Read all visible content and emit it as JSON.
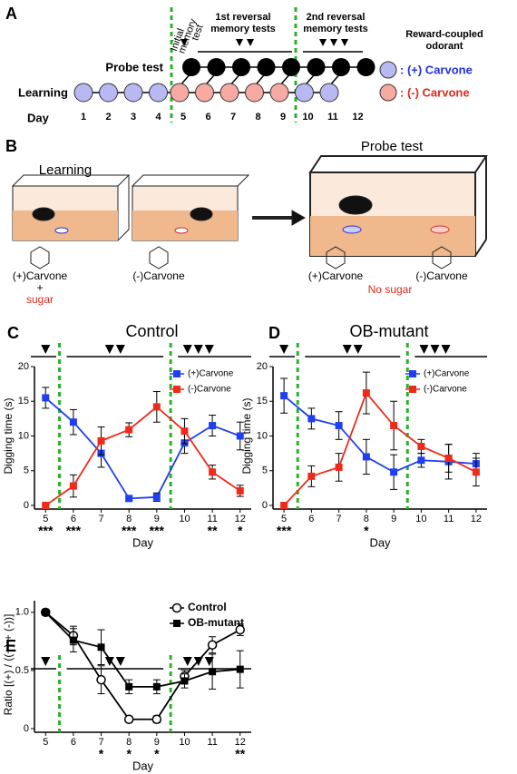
{
  "panel_a": {
    "label": "A",
    "initial_test": [
      "Initial",
      "memory",
      "test"
    ],
    "reversal1": [
      "1st reversal",
      "memory tests"
    ],
    "reversal2": [
      "2nd reversal",
      "memory tests"
    ],
    "legend_title": [
      "Reward-coupled",
      "odorant"
    ],
    "legend": [
      ": (+) Carvone",
      ": (-) Carvone"
    ],
    "probe_label": "Probe test",
    "learning_label": "Learning",
    "day_label": "Day",
    "days": [
      1,
      2,
      3,
      4,
      5,
      6,
      7,
      8,
      9,
      10,
      11,
      12
    ]
  },
  "panel_b": {
    "label": "B",
    "learning": "Learning",
    "probe": "Probe test",
    "odor_plus": "(+)Carvone",
    "plus_sign": "+",
    "reward": "sugar",
    "odor_minus": "(-)Carvone",
    "probe_left": "(+)Carvone",
    "probe_right": "(-)Carvone",
    "probe_note": "No sugar"
  },
  "chart_data": [
    {
      "type": "line",
      "panel": "C",
      "title": "Control",
      "xlabel": "Day",
      "ylabel": "Digging time (s)",
      "x": [
        5,
        6,
        7,
        8,
        9,
        10,
        11,
        12
      ],
      "xlim": [
        4.6,
        12.4
      ],
      "xticks": [
        5,
        6,
        7,
        8,
        9,
        10,
        11,
        12
      ],
      "ylim": [
        0,
        20
      ],
      "yticks": [
        0,
        5,
        10,
        15,
        20
      ],
      "legend": "upper right",
      "series": [
        {
          "name": "(+)Carvone",
          "color": "#1f3ff0",
          "marker": "square",
          "values": [
            15.5,
            12,
            7.5,
            1,
            1.2,
            9,
            11.5,
            10
          ],
          "errors": [
            1.5,
            1.8,
            2,
            0.3,
            0.6,
            1.5,
            1.5,
            2
          ]
        },
        {
          "name": "(-)Carvone",
          "color": "#f02a1a",
          "marker": "square",
          "values": [
            0,
            2.8,
            9.3,
            10.9,
            14.2,
            10.7,
            4.8,
            2.1
          ],
          "errors": [
            0,
            1.6,
            2,
            1,
            2.2,
            1.8,
            1,
            0.8
          ]
        }
      ],
      "annotations": [
        {
          "x": 5,
          "text": "***"
        },
        {
          "x": 6,
          "text": "***"
        },
        {
          "x": 8,
          "text": "***"
        },
        {
          "x": 9,
          "text": "***"
        },
        {
          "x": 11,
          "text": "**"
        },
        {
          "x": 12,
          "text": "*"
        }
      ]
    },
    {
      "type": "line",
      "panel": "D",
      "title": "OB-mutant",
      "xlabel": "Day",
      "ylabel": "Digging time (s)",
      "x": [
        5,
        6,
        7,
        8,
        9,
        10,
        11,
        12
      ],
      "xlim": [
        4.6,
        12.4
      ],
      "xticks": [
        5,
        6,
        7,
        8,
        9,
        10,
        11,
        12
      ],
      "ylim": [
        0,
        20
      ],
      "yticks": [
        0,
        5,
        10,
        15,
        20
      ],
      "legend": "upper right",
      "series": [
        {
          "name": "(+)Carvone",
          "color": "#1f3ff0",
          "marker": "square",
          "values": [
            15.8,
            12.5,
            11.5,
            7,
            4.8,
            6.5,
            6.3,
            6
          ],
          "errors": [
            2.5,
            1.5,
            2,
            2.5,
            2.5,
            1,
            2.5,
            1.5
          ]
        },
        {
          "name": "(-)Carvone",
          "color": "#f02a1a",
          "marker": "square",
          "values": [
            0,
            4.2,
            5.5,
            16.2,
            11.5,
            8.5,
            6.8,
            4.8
          ],
          "errors": [
            0,
            1.5,
            2,
            3,
            3.5,
            1,
            2,
            2
          ]
        }
      ],
      "annotations": [
        {
          "x": 5,
          "text": "***"
        },
        {
          "x": 8,
          "text": "*"
        }
      ]
    },
    {
      "type": "line",
      "panel": "E",
      "xlabel": "Day",
      "ylabel": "Ratio [(+) / ((+) + (-))]",
      "x": [
        5,
        6,
        7,
        8,
        9,
        10,
        11,
        12
      ],
      "xlim": [
        4.6,
        12.4
      ],
      "xticks": [
        5,
        6,
        7,
        8,
        9,
        10,
        11,
        12
      ],
      "ylim": [
        0,
        1.1
      ],
      "yticks": [
        0,
        0.5,
        {
          "value": 1,
          "label": "1.0"
        }
      ],
      "legend": "upper right",
      "series": [
        {
          "name": "Control",
          "color": "#000000",
          "marker": "open-circle",
          "values": [
            1,
            0.8,
            0.42,
            0.08,
            0.08,
            0.45,
            0.72,
            0.85
          ],
          "errors": [
            0,
            0.08,
            0.12,
            0.02,
            0.03,
            0.05,
            0.07,
            0.05
          ]
        },
        {
          "name": "OB-mutant",
          "color": "#000000",
          "marker": "square",
          "values": [
            1,
            0.76,
            0.7,
            0.36,
            0.36,
            0.41,
            0.49,
            0.51
          ],
          "errors": [
            0,
            0.1,
            0.15,
            0.06,
            0.06,
            0.06,
            0.15,
            0.16
          ]
        }
      ],
      "annotations": [
        {
          "x": 7,
          "text": "*"
        },
        {
          "x": 8,
          "text": "*"
        },
        {
          "x": 9,
          "text": "*"
        },
        {
          "x": 12,
          "text": "**"
        }
      ]
    }
  ]
}
